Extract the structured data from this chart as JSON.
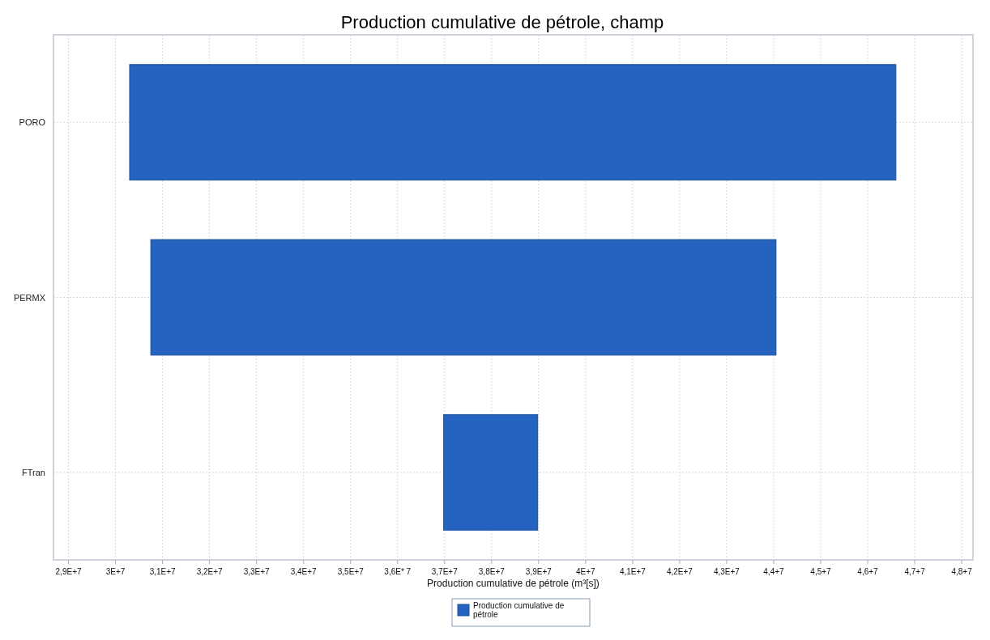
{
  "chart_data": {
    "type": "bar",
    "orientation": "horizontal",
    "title": "Production cumulative de pétrole, champ",
    "xlabel": "Production cumulative de pétrole (m³[s])",
    "categories": [
      "PORO",
      "PERMX",
      "FTran"
    ],
    "series": [
      {
        "name": "Production cumulative de pétrole",
        "color": "#2463bf",
        "values": [
          16300000,
          13300000,
          2000000
        ],
        "base": [
          30300000,
          30750000,
          36980000
        ]
      }
    ],
    "xlim": [
      28680000,
      48240000
    ],
    "xticks": [
      {
        "value": 29000000,
        "label": "2,9E+7"
      },
      {
        "value": 30000000,
        "label": "3E+7"
      },
      {
        "value": 31000000,
        "label": "3,1E+7"
      },
      {
        "value": 32000000,
        "label": "3,2E+7"
      },
      {
        "value": 33000000,
        "label": "3,3E+7"
      },
      {
        "value": 34000000,
        "label": "3,4E+7"
      },
      {
        "value": 35000000,
        "label": "3,5E+7"
      },
      {
        "value": 36000000,
        "label": "3,6E* 7"
      },
      {
        "value": 37000000,
        "label": "3,7E+7"
      },
      {
        "value": 38000000,
        "label": "3,8E+7"
      },
      {
        "value": 39000000,
        "label": "3,9E+7"
      },
      {
        "value": 40000000,
        "label": "4E+7"
      },
      {
        "value": 41000000,
        "label": "4,1E+7"
      },
      {
        "value": 42000000,
        "label": "4,2E+7"
      },
      {
        "value": 43000000,
        "label": "4,3E+7"
      },
      {
        "value": 44000000,
        "label": "4,4+7"
      },
      {
        "value": 45000000,
        "label": "4,5+7"
      },
      {
        "value": 46000000,
        "label": "4,6+7"
      },
      {
        "value": 47000000,
        "label": "4,7+7"
      },
      {
        "value": 48000000,
        "label": "4,8+7"
      }
    ],
    "grid": true,
    "legend": "bottom"
  }
}
